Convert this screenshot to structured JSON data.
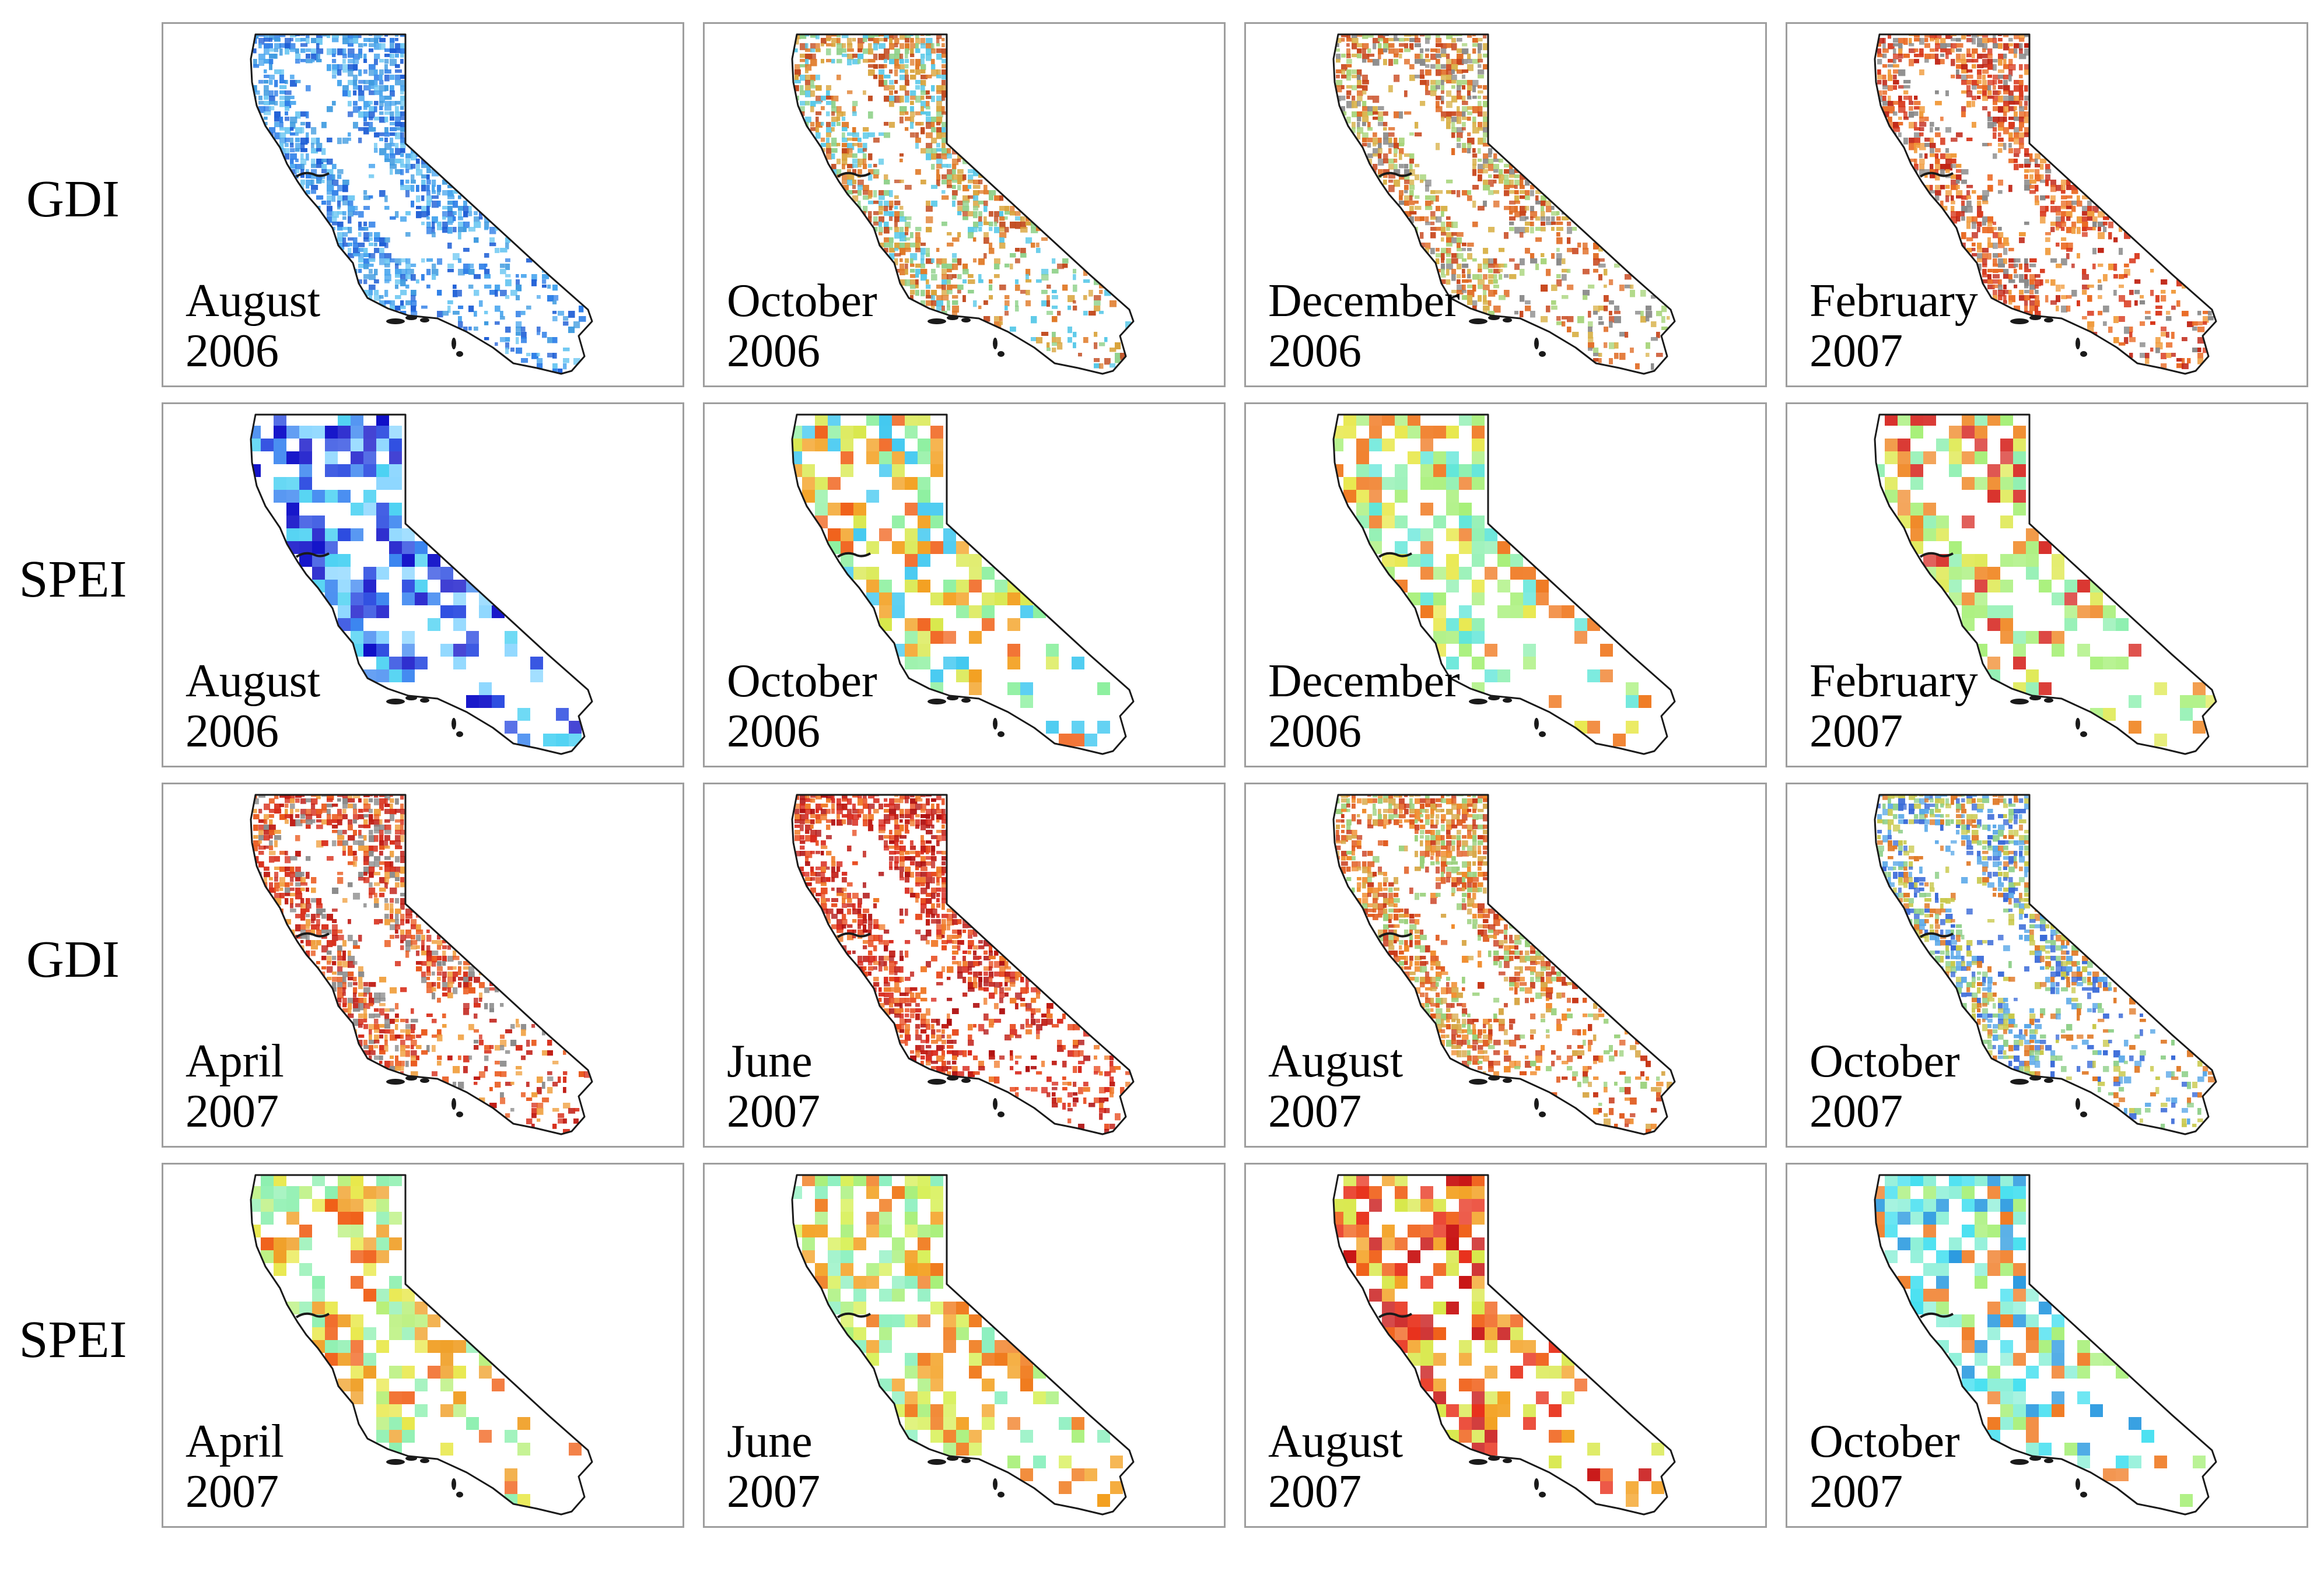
{
  "rows": [
    {
      "label": "GDI",
      "panels": [
        {
          "month": "August",
          "year": "2006",
          "palette": [
            "#1f5fd6",
            "#2f7fe8",
            "#4aa6ee",
            "#6fc8f2",
            "#3f9be0"
          ]
        },
        {
          "month": "October",
          "year": "2006",
          "palette": [
            "#e07a28",
            "#d9a43c",
            "#57c8e8",
            "#8fd18a",
            "#c24a1e"
          ]
        },
        {
          "month": "December",
          "year": "2006",
          "palette": [
            "#8a8a8a",
            "#e06a22",
            "#d9b24a",
            "#a7d47a",
            "#c8461c"
          ]
        },
        {
          "month": "February",
          "year": "2007",
          "palette": [
            "#d8381c",
            "#ea6a24",
            "#8a8a8a",
            "#f09a3a",
            "#c02414"
          ]
        }
      ]
    },
    {
      "label": "SPEI",
      "panels": [
        {
          "month": "August",
          "year": "2006",
          "palette": [
            "#1010c8",
            "#2a4ae0",
            "#3c86f0",
            "#46d0f2",
            "#8ad6ff"
          ]
        },
        {
          "month": "October",
          "year": "2006",
          "palette": [
            "#f06018",
            "#f3a020",
            "#d8e84a",
            "#8ef0a0",
            "#40c8f0"
          ]
        },
        {
          "month": "December",
          "year": "2006",
          "palette": [
            "#8ef0b0",
            "#a8f07a",
            "#5fe6d8",
            "#e8e84a",
            "#f07a22"
          ]
        },
        {
          "month": "February",
          "year": "2007",
          "palette": [
            "#a8f07a",
            "#8ef0b0",
            "#e0ea5a",
            "#f08a2a",
            "#d8302a"
          ]
        }
      ]
    },
    {
      "label": "GDI",
      "panels": [
        {
          "month": "April",
          "year": "2007",
          "palette": [
            "#d8301c",
            "#ea5a1e",
            "#8a8a8a",
            "#f0a040",
            "#c01c14"
          ]
        },
        {
          "month": "June",
          "year": "2007",
          "palette": [
            "#d8281c",
            "#c01c14",
            "#e84a1e",
            "#f07a2a",
            "#b01010"
          ]
        },
        {
          "month": "August",
          "year": "2007",
          "palette": [
            "#e05a1e",
            "#d8a848",
            "#98d07a",
            "#c83818",
            "#f08a2a"
          ]
        },
        {
          "month": "October",
          "year": "2007",
          "palette": [
            "#5aa8e8",
            "#8fd08a",
            "#e07a28",
            "#3a6ad8",
            "#c8c84a"
          ]
        }
      ]
    },
    {
      "label": "SPEI",
      "panels": [
        {
          "month": "April",
          "year": "2007",
          "palette": [
            "#b8f07a",
            "#8ef0b0",
            "#f0a028",
            "#f06018",
            "#e8e84a"
          ]
        },
        {
          "month": "June",
          "year": "2007",
          "palette": [
            "#f3a020",
            "#d8f05a",
            "#a8f07a",
            "#f07a1c",
            "#8ef0c0"
          ]
        },
        {
          "month": "August",
          "year": "2007",
          "palette": [
            "#f06018",
            "#e8301a",
            "#f3a020",
            "#c81414",
            "#d8e84a"
          ]
        },
        {
          "month": "October",
          "year": "2007",
          "palette": [
            "#46e0f0",
            "#8ef0d8",
            "#a8f07a",
            "#f07a22",
            "#2a9ae0"
          ]
        }
      ]
    }
  ],
  "colors": {
    "panel_border": "#9e9e9e",
    "outline": "#1a1a1a",
    "text": "#000000"
  }
}
